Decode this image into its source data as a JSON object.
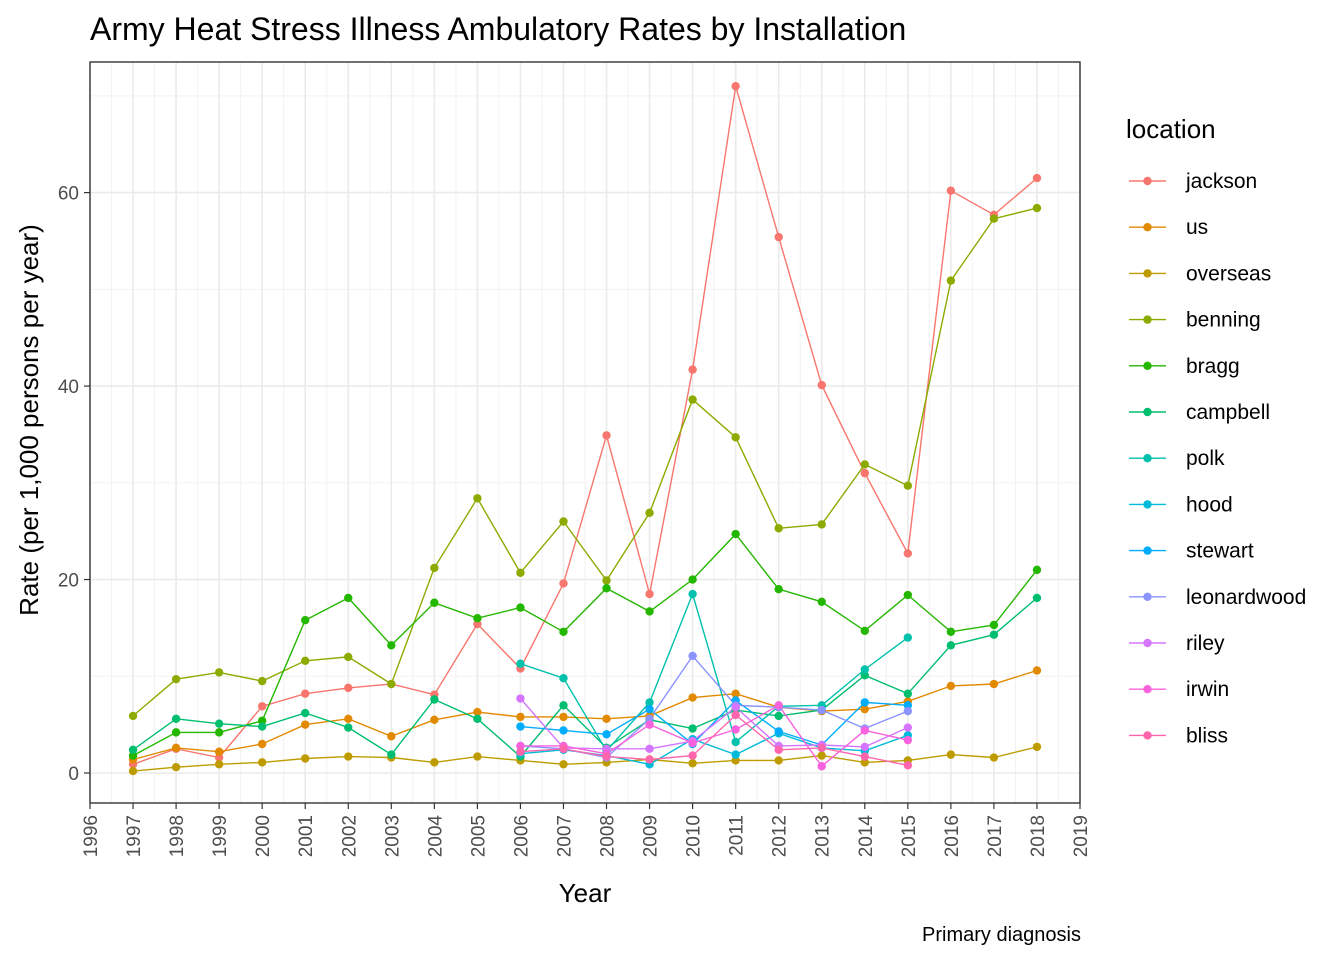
{
  "chart_data": {
    "type": "line",
    "title": "Army Heat Stress Illness Ambulatory Rates by Installation",
    "xlabel": "Year",
    "ylabel": "Rate (per 1,000 persons per year)",
    "caption": "Primary diagnosis",
    "legend_title": "location",
    "legend_position": "right",
    "grid": true,
    "xlim": [
      1996,
      2019
    ],
    "ylim": [
      -3.1,
      73.5
    ],
    "x_ticks": [
      1996,
      1997,
      1998,
      1999,
      2000,
      2001,
      2002,
      2003,
      2004,
      2005,
      2006,
      2007,
      2008,
      2009,
      2010,
      2011,
      2012,
      2013,
      2014,
      2015,
      2016,
      2017,
      2018,
      2019
    ],
    "y_ticks": [
      0,
      20,
      40,
      60
    ],
    "series": [
      {
        "name": "jackson",
        "color": "#F8766D",
        "x": [
          1997,
          1998,
          1999,
          2000,
          2001,
          2002,
          2003,
          2004,
          2005,
          2006,
          2007,
          2008,
          2009,
          2010,
          2011,
          2012,
          2013,
          2014,
          2015,
          2016,
          2017,
          2018
        ],
        "values": [
          0.9,
          2.5,
          1.6,
          6.9,
          8.2,
          8.8,
          9.2,
          8.1,
          15.4,
          10.8,
          19.6,
          34.9,
          18.5,
          41.7,
          71.0,
          55.4,
          40.1,
          31.0,
          22.7,
          60.2,
          57.7,
          61.5
        ]
      },
      {
        "name": "us",
        "color": "#E18A00",
        "x": [
          1997,
          1998,
          1999,
          2000,
          2001,
          2002,
          2003,
          2004,
          2005,
          2006,
          2007,
          2008,
          2009,
          2010,
          2011,
          2012,
          2013,
          2014,
          2015,
          2016,
          2017,
          2018
        ],
        "values": [
          1.4,
          2.6,
          2.2,
          3.0,
          5.0,
          5.6,
          3.8,
          5.5,
          6.3,
          5.8,
          5.8,
          5.6,
          5.9,
          7.8,
          8.2,
          6.8,
          6.4,
          6.6,
          7.4,
          9.0,
          9.2,
          10.6
        ]
      },
      {
        "name": "overseas",
        "color": "#BE9C00",
        "x": [
          1997,
          1998,
          1999,
          2000,
          2001,
          2002,
          2003,
          2004,
          2005,
          2006,
          2007,
          2008,
          2009,
          2010,
          2011,
          2012,
          2013,
          2014,
          2015,
          2016,
          2017,
          2018
        ],
        "values": [
          0.2,
          0.6,
          0.9,
          1.1,
          1.5,
          1.7,
          1.6,
          1.1,
          1.7,
          1.3,
          0.9,
          1.1,
          1.4,
          1.0,
          1.3,
          1.3,
          1.8,
          1.1,
          1.3,
          1.9,
          1.6,
          2.7
        ]
      },
      {
        "name": "benning",
        "color": "#8CAB00",
        "x": [
          1997,
          1998,
          1999,
          2000,
          2001,
          2002,
          2003,
          2004,
          2005,
          2006,
          2007,
          2008,
          2009,
          2010,
          2011,
          2012,
          2013,
          2014,
          2015,
          2016,
          2017,
          2018
        ],
        "values": [
          5.9,
          9.7,
          10.4,
          9.5,
          11.6,
          12.0,
          9.2,
          21.2,
          28.4,
          20.7,
          26.0,
          19.9,
          26.9,
          38.6,
          34.7,
          25.3,
          25.7,
          31.9,
          29.7,
          50.9,
          57.3,
          58.4
        ]
      },
      {
        "name": "bragg",
        "color": "#24B700",
        "x": [
          1997,
          1998,
          1999,
          2000,
          2001,
          2002,
          2003,
          2004,
          2005,
          2006,
          2007,
          2008,
          2009,
          2010,
          2011,
          2012,
          2013,
          2014,
          2015,
          2016,
          2017,
          2018
        ],
        "values": [
          1.8,
          4.2,
          4.2,
          5.4,
          15.8,
          18.1,
          13.2,
          17.6,
          16.0,
          17.1,
          14.6,
          19.1,
          16.7,
          20.0,
          24.7,
          19.0,
          17.7,
          14.7,
          18.4,
          14.6,
          15.3,
          21.0
        ]
      },
      {
        "name": "campbell",
        "color": "#00BE70",
        "x": [
          1997,
          1998,
          1999,
          2000,
          2001,
          2002,
          2003,
          2004,
          2005,
          2006,
          2007,
          2008,
          2009,
          2010,
          2011,
          2012,
          2013,
          2014,
          2015,
          2016,
          2017,
          2018
        ],
        "values": [
          2.4,
          5.6,
          5.1,
          4.8,
          6.2,
          4.7,
          1.9,
          7.6,
          5.6,
          1.7,
          7.0,
          2.6,
          5.5,
          4.6,
          6.5,
          5.9,
          6.5,
          10.1,
          8.2,
          13.2,
          14.3,
          18.1
        ]
      },
      {
        "name": "polk",
        "color": "#00C1AB",
        "x": [
          2006,
          2007,
          2008,
          2009,
          2010,
          2011,
          2012,
          2013,
          2014,
          2015
        ],
        "values": [
          11.3,
          9.8,
          2.3,
          7.3,
          18.5,
          3.2,
          6.9,
          7.0,
          10.7,
          14.0
        ]
      },
      {
        "name": "hood",
        "color": "#00BBDA",
        "x": [
          2006,
          2007,
          2008,
          2009,
          2010,
          2011,
          2012,
          2013,
          2014,
          2015
        ],
        "values": [
          2.0,
          2.4,
          1.8,
          0.9,
          3.5,
          1.9,
          4.1,
          2.6,
          2.3,
          3.9
        ]
      },
      {
        "name": "stewart",
        "color": "#00ACFC",
        "x": [
          2006,
          2007,
          2008,
          2009,
          2010,
          2011,
          2012,
          2013,
          2014,
          2015
        ],
        "values": [
          4.8,
          4.4,
          4.0,
          6.6,
          3.0,
          7.5,
          4.3,
          2.9,
          7.3,
          7.0
        ]
      },
      {
        "name": "leonardwood",
        "color": "#8B93FF",
        "x": [
          2006,
          2007,
          2008,
          2009,
          2010,
          2011,
          2012,
          2013,
          2014,
          2015
        ],
        "values": [
          2.8,
          2.5,
          1.6,
          5.6,
          12.1,
          7.0,
          6.8,
          6.5,
          4.6,
          6.4
        ]
      },
      {
        "name": "riley",
        "color": "#D575FE",
        "x": [
          2006,
          2007,
          2008,
          2009,
          2010,
          2011,
          2012,
          2013,
          2014,
          2015
        ],
        "values": [
          7.7,
          2.6,
          2.5,
          2.5,
          3.3,
          6.8,
          2.8,
          2.9,
          2.7,
          4.7
        ]
      },
      {
        "name": "irwin",
        "color": "#F962DD",
        "x": [
          2006,
          2007,
          2008,
          2009,
          2010,
          2011,
          2012,
          2013,
          2014,
          2015
        ],
        "values": [
          2.8,
          2.8,
          2.0,
          5.0,
          3.1,
          4.5,
          7.0,
          0.7,
          4.4,
          3.4
        ]
      },
      {
        "name": "bliss",
        "color": "#FF65AC",
        "x": [
          2006,
          2007,
          2008,
          2009,
          2010,
          2011,
          2012,
          2013,
          2014,
          2015
        ],
        "values": [
          2.2,
          2.5,
          1.7,
          1.4,
          1.8,
          6.0,
          2.4,
          2.6,
          1.7,
          0.8
        ]
      }
    ]
  }
}
